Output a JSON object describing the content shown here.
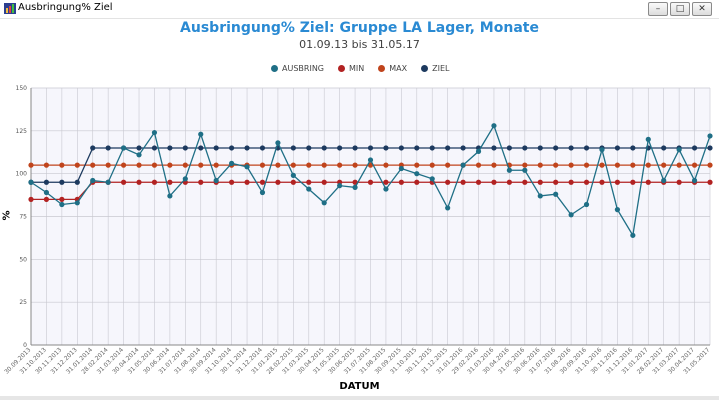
{
  "window": {
    "title": "Ausbringung% Ziel",
    "min_icon": "minimize-icon",
    "max_icon": "maximize-icon",
    "close_icon": "close-icon",
    "app_icon": "app-icon"
  },
  "chart_data": {
    "type": "line",
    "title": "Ausbringung% Ziel: Gruppe LA Lager, Monate",
    "subtitle": "01.09.13 bis 31.05.17",
    "xlabel": "DATUM",
    "ylabel": "%",
    "ylim": [
      0,
      150
    ],
    "yticks": [
      0,
      25,
      50,
      75,
      100,
      125,
      150
    ],
    "grid": true,
    "legend_position": "top-center",
    "x": [
      "30.09.2013",
      "31.10.2013",
      "30.11.2013",
      "31.12.2013",
      "31.01.2014",
      "28.02.2014",
      "31.03.2014",
      "30.04.2014",
      "31.05.2014",
      "30.06.2014",
      "31.07.2014",
      "31.08.2014",
      "30.09.2014",
      "31.10.2014",
      "30.11.2014",
      "31.12.2014",
      "31.01.2015",
      "28.02.2015",
      "31.03.2015",
      "30.04.2015",
      "31.05.2015",
      "30.06.2015",
      "31.07.2015",
      "31.08.2015",
      "30.09.2015",
      "31.10.2015",
      "30.11.2015",
      "31.12.2015",
      "31.01.2016",
      "29.02.2016",
      "31.03.2016",
      "30.04.2016",
      "31.05.2016",
      "30.06.2016",
      "31.07.2016",
      "31.08.2016",
      "30.09.2016",
      "31.10.2016",
      "30.11.2016",
      "31.12.2016",
      "31.01.2017",
      "28.02.2017",
      "31.03.2017",
      "30.04.2017",
      "31.05.2017"
    ],
    "series": [
      {
        "name": "AUSBRING",
        "color": "#1f6f86",
        "values": [
          95,
          89,
          82,
          83,
          96,
          95,
          115,
          111,
          124,
          87,
          97,
          123,
          96,
          106,
          104,
          89,
          118,
          99,
          91,
          83,
          93,
          92,
          108,
          91,
          103,
          100,
          97,
          80,
          105,
          113,
          128,
          102,
          102,
          87,
          88,
          76,
          82,
          114,
          79,
          64,
          120,
          96,
          114,
          96,
          122
        ]
      },
      {
        "name": "MIN",
        "color": "#b22222",
        "values": [
          85,
          85,
          85,
          85,
          95,
          95,
          95,
          95,
          95,
          95,
          95,
          95,
          95,
          95,
          95,
          95,
          95,
          95,
          95,
          95,
          95,
          95,
          95,
          95,
          95,
          95,
          95,
          95,
          95,
          95,
          95,
          95,
          95,
          95,
          95,
          95,
          95,
          95,
          95,
          95,
          95,
          95,
          95,
          95,
          95
        ]
      },
      {
        "name": "MAX",
        "color": "#c0441c",
        "values": [
          105,
          105,
          105,
          105,
          105,
          105,
          105,
          105,
          105,
          105,
          105,
          105,
          105,
          105,
          105,
          105,
          105,
          105,
          105,
          105,
          105,
          105,
          105,
          105,
          105,
          105,
          105,
          105,
          105,
          105,
          105,
          105,
          105,
          105,
          105,
          105,
          105,
          105,
          105,
          105,
          105,
          105,
          105,
          105,
          105
        ]
      },
      {
        "name": "ZIEL",
        "color": "#1d3a5f",
        "values": [
          95,
          95,
          95,
          95,
          115,
          115,
          115,
          115,
          115,
          115,
          115,
          115,
          115,
          115,
          115,
          115,
          115,
          115,
          115,
          115,
          115,
          115,
          115,
          115,
          115,
          115,
          115,
          115,
          115,
          115,
          115,
          115,
          115,
          115,
          115,
          115,
          115,
          115,
          115,
          115,
          115,
          115,
          115,
          115,
          115
        ]
      }
    ]
  }
}
